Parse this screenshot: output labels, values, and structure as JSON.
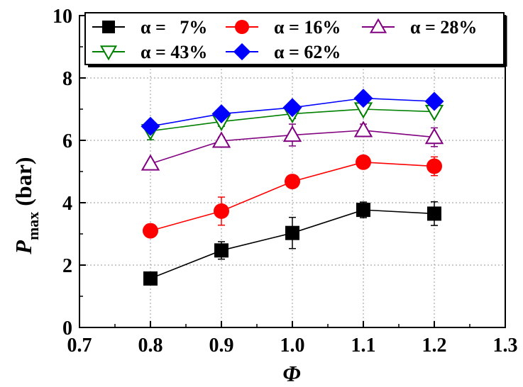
{
  "chart_data": {
    "type": "line",
    "title": "",
    "xlabel": "Φ",
    "ylabel_main": "P",
    "ylabel_sub": "max",
    "ylabel_unit": "(bar)",
    "xlim": [
      0.7,
      1.3
    ],
    "ylim": [
      0,
      10
    ],
    "xticks": [
      "0.7",
      "0.8",
      "0.9",
      "1.0",
      "1.1",
      "1.2",
      "1.3"
    ],
    "yticks": [
      "0",
      "2",
      "4",
      "6",
      "8",
      "10"
    ],
    "grid": true,
    "legend_position": "top",
    "x": [
      0.8,
      0.9,
      1.0,
      1.1,
      1.2
    ],
    "series": [
      {
        "name": "α =   7%",
        "color": "#000000",
        "marker": "square",
        "values": [
          1.57,
          2.47,
          3.03,
          3.77,
          3.65
        ],
        "errors": [
          0.1,
          0.28,
          0.5,
          0.25,
          0.38
        ]
      },
      {
        "name": "α = 16%",
        "color": "#ff0000",
        "marker": "circle",
        "values": [
          3.1,
          3.73,
          4.68,
          5.3,
          5.17
        ],
        "errors": [
          0.2,
          0.45,
          0.12,
          0.12,
          0.3
        ]
      },
      {
        "name": "α = 28%",
        "color": "#800080",
        "marker": "triangle-up",
        "values": [
          5.25,
          5.98,
          6.17,
          6.32,
          6.1
        ],
        "errors": [
          0.1,
          0.12,
          0.35,
          0.2,
          0.3
        ]
      },
      {
        "name": "α = 43%",
        "color": "#008000",
        "marker": "triangle-down",
        "values": [
          6.3,
          6.6,
          6.85,
          7.0,
          6.92
        ],
        "errors": [
          0.28,
          0.15,
          0.15,
          0.12,
          0.1
        ]
      },
      {
        "name": "α = 62%",
        "color": "#0000ff",
        "marker": "diamond",
        "values": [
          6.45,
          6.85,
          7.05,
          7.35,
          7.25
        ],
        "errors": [
          0.08,
          0.08,
          0.08,
          0.08,
          0.08
        ]
      }
    ]
  }
}
